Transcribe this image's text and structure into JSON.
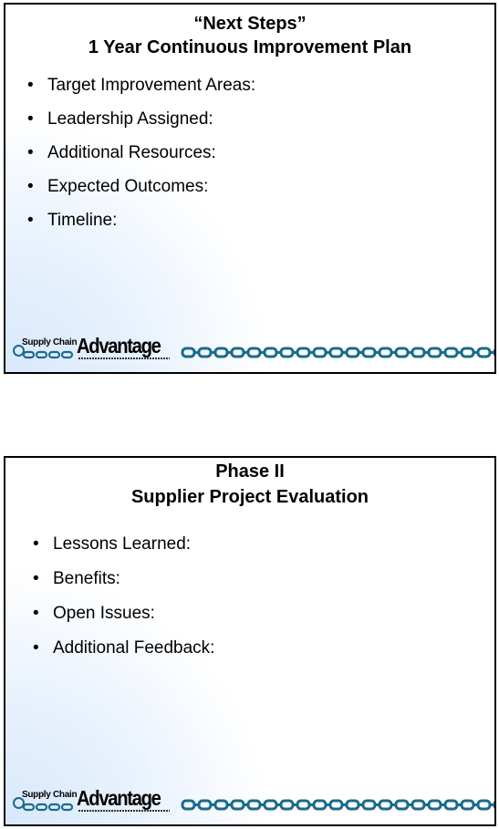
{
  "slides": [
    {
      "title_line1": "“Next Steps”",
      "title_line2": "1 Year Continuous Improvement Plan",
      "bullets": [
        "Target Improvement Areas:",
        "Leadership Assigned:",
        "Additional Resources:",
        "Expected Outcomes:",
        "Timeline:"
      ]
    },
    {
      "title_line1": "Phase II",
      "title_line2": "Supplier Project Evaluation",
      "bullets": [
        "Lessons Learned:",
        "Benefits:",
        "Open Issues:",
        "Additional Feedback:"
      ]
    }
  ],
  "logo": {
    "small_text": "Supply Chain",
    "large_text": "Advantage",
    "chain_color": "#1a6b8a"
  },
  "bullet_glyph": "•"
}
